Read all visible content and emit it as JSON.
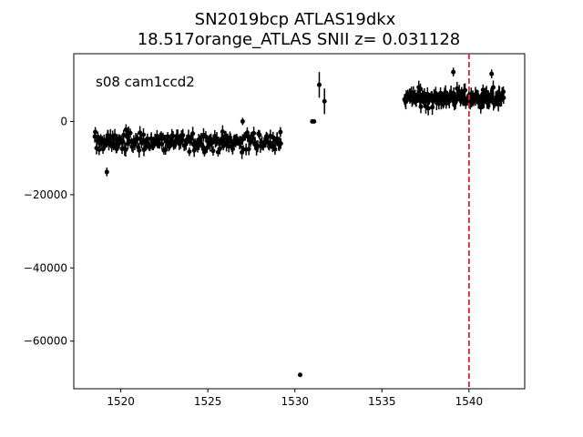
{
  "chart_data": {
    "type": "scatter",
    "title_line1": "SN2019bcp  ATLAS19dkx",
    "title_line2": "18.517orange_ATLAS SNII z= 0.031128",
    "annotation": "s08 cam1ccd2",
    "xlabel": "",
    "ylabel": "",
    "xlim": [
      1517.3,
      1543.2
    ],
    "ylim": [
      -73000,
      18500
    ],
    "xticks": [
      1520,
      1525,
      1530,
      1535,
      1540
    ],
    "xtick_labels": [
      "1520",
      "1525",
      "1530",
      "1535",
      "1540"
    ],
    "yticks": [
      0,
      -20000,
      -40000,
      -60000
    ],
    "ytick_labels": [
      "0",
      "−20000",
      "−40000",
      "−60000"
    ],
    "grid": false,
    "vline": {
      "x": 1540.0,
      "color": "#d62728",
      "style": "dashed"
    },
    "colors": {
      "points": "#000000",
      "vline": "#d62728"
    },
    "series": [
      {
        "segments": [
          {
            "x_start": 1518.5,
            "x_end": 1529.2,
            "y_mean": -5500,
            "y_spread": 4500,
            "err": 1500,
            "count": 220
          },
          {
            "x_start": 1536.3,
            "x_end": 1542.0,
            "y_mean": 6500,
            "y_spread": 4000,
            "err": 1600,
            "count": 150
          }
        ],
        "points": [
          {
            "x": 1531.0,
            "y": 0,
            "err": 250
          },
          {
            "x": 1531.1,
            "y": 0,
            "err": 250
          },
          {
            "x": 1531.4,
            "y": 10000,
            "err": 3500
          },
          {
            "x": 1531.7,
            "y": 5500,
            "err": 3500
          },
          {
            "x": 1530.3,
            "y": -69200,
            "err": 300
          },
          {
            "x": 1519.2,
            "y": -13800,
            "err": 1200
          },
          {
            "x": 1527.0,
            "y": 0,
            "err": 1000
          },
          {
            "x": 1539.1,
            "y": 13500,
            "err": 1200
          },
          {
            "x": 1541.3,
            "y": 13000,
            "err": 1200
          }
        ]
      }
    ]
  }
}
